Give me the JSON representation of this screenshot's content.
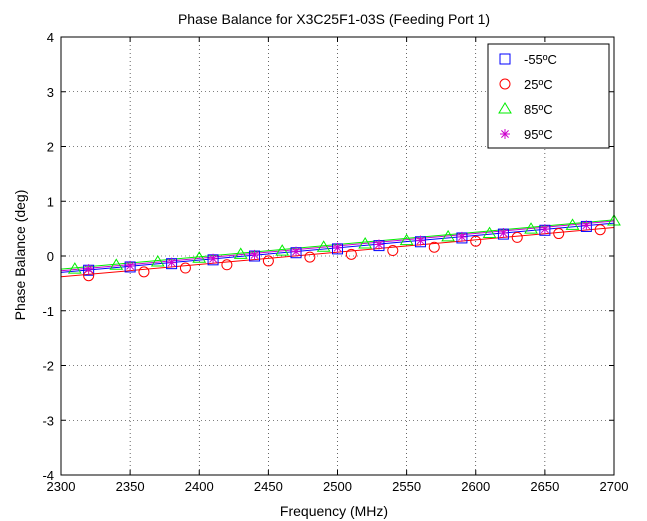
{
  "chart_data": {
    "type": "line",
    "title": "Phase Balance for X3C25F1-03S (Feeding Port 1)",
    "xlabel": "Frequency (MHz)",
    "ylabel": "Phase Balance (deg)",
    "xlim": [
      2300,
      2700
    ],
    "ylim": [
      -4,
      4
    ],
    "xticks": [
      2300,
      2350,
      2400,
      2450,
      2500,
      2550,
      2600,
      2650,
      2700
    ],
    "yticks": [
      -4,
      -3,
      -2,
      -1,
      0,
      1,
      2,
      3,
      4
    ],
    "grid": true,
    "legend_position": "top-right",
    "series": [
      {
        "name": "-55ºC",
        "marker": "square",
        "color": "#0000ff",
        "line": [
          [
            2300,
            -0.3
          ],
          [
            2700,
            0.6
          ]
        ],
        "points": [
          [
            2320,
            -0.26
          ],
          [
            2350,
            -0.2
          ],
          [
            2380,
            -0.14
          ],
          [
            2410,
            -0.07
          ],
          [
            2440,
            0.0
          ],
          [
            2470,
            0.06
          ],
          [
            2500,
            0.13
          ],
          [
            2530,
            0.19
          ],
          [
            2560,
            0.26
          ],
          [
            2590,
            0.33
          ],
          [
            2620,
            0.4
          ],
          [
            2650,
            0.47
          ],
          [
            2680,
            0.54
          ]
        ]
      },
      {
        "name": "25ºC",
        "marker": "circle",
        "color": "#ff0000",
        "line": [
          [
            2300,
            -0.38
          ],
          [
            2700,
            0.52
          ]
        ],
        "points": [
          [
            2320,
            -0.36
          ],
          [
            2360,
            -0.29
          ],
          [
            2390,
            -0.22
          ],
          [
            2420,
            -0.16
          ],
          [
            2450,
            -0.09
          ],
          [
            2480,
            -0.02
          ],
          [
            2510,
            0.03
          ],
          [
            2540,
            0.1
          ],
          [
            2570,
            0.16
          ],
          [
            2600,
            0.27
          ],
          [
            2630,
            0.34
          ],
          [
            2660,
            0.41
          ],
          [
            2690,
            0.48
          ]
        ]
      },
      {
        "name": "85ºC",
        "marker": "triangle",
        "color": "#00ee00",
        "line": [
          [
            2300,
            -0.24
          ],
          [
            2700,
            0.66
          ]
        ],
        "points": [
          [
            2310,
            -0.24
          ],
          [
            2340,
            -0.17
          ],
          [
            2370,
            -0.11
          ],
          [
            2400,
            -0.04
          ],
          [
            2430,
            0.03
          ],
          [
            2460,
            0.09
          ],
          [
            2490,
            0.16
          ],
          [
            2520,
            0.22
          ],
          [
            2550,
            0.28
          ],
          [
            2580,
            0.35
          ],
          [
            2610,
            0.41
          ],
          [
            2640,
            0.49
          ],
          [
            2670,
            0.56
          ],
          [
            2700,
            0.64
          ]
        ]
      },
      {
        "name": "95ºC",
        "marker": "star",
        "color": "#cc00cc",
        "line": [
          [
            2300,
            -0.27
          ],
          [
            2700,
            0.64
          ]
        ],
        "points": [
          [
            2320,
            -0.24
          ],
          [
            2350,
            -0.18
          ],
          [
            2380,
            -0.12
          ],
          [
            2410,
            -0.05
          ],
          [
            2440,
            0.02
          ],
          [
            2470,
            0.08
          ],
          [
            2500,
            0.15
          ],
          [
            2530,
            0.21
          ],
          [
            2560,
            0.28
          ],
          [
            2590,
            0.35
          ],
          [
            2620,
            0.42
          ],
          [
            2650,
            0.49
          ],
          [
            2680,
            0.56
          ]
        ]
      }
    ]
  }
}
